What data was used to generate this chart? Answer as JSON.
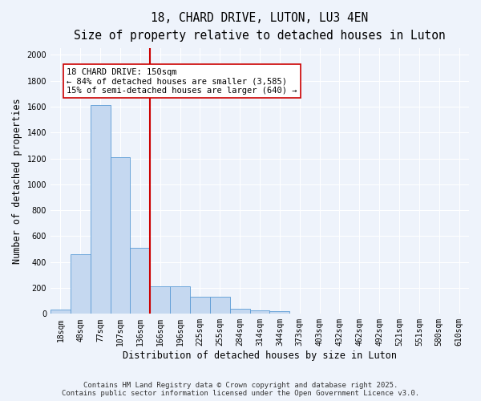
{
  "title_line1": "18, CHARD DRIVE, LUTON, LU3 4EN",
  "title_line2": "Size of property relative to detached houses in Luton",
  "xlabel": "Distribution of detached houses by size in Luton",
  "ylabel": "Number of detached properties",
  "categories": [
    "18sqm",
    "48sqm",
    "77sqm",
    "107sqm",
    "136sqm",
    "166sqm",
    "196sqm",
    "225sqm",
    "255sqm",
    "284sqm",
    "314sqm",
    "344sqm",
    "373sqm",
    "403sqm",
    "432sqm",
    "462sqm",
    "492sqm",
    "521sqm",
    "551sqm",
    "580sqm",
    "610sqm"
  ],
  "values": [
    30,
    460,
    1610,
    1210,
    510,
    215,
    215,
    130,
    130,
    40,
    25,
    20,
    0,
    0,
    0,
    0,
    0,
    0,
    0,
    0,
    0
  ],
  "bar_color": "#c5d8f0",
  "bar_edge_color": "#5b9bd5",
  "vline_x_idx": 4.5,
  "vline_color": "#cc0000",
  "annotation_text": "18 CHARD DRIVE: 150sqm\n← 84% of detached houses are smaller (3,585)\n15% of semi-detached houses are larger (640) →",
  "annotation_box_color": "#ffffff",
  "annotation_box_edge": "#cc0000",
  "ylim": [
    0,
    2050
  ],
  "yticks": [
    0,
    200,
    400,
    600,
    800,
    1000,
    1200,
    1400,
    1600,
    1800,
    2000
  ],
  "fig_bg_color": "#eef3fb",
  "plot_bg_color": "#eef3fb",
  "footer_line1": "Contains HM Land Registry data © Crown copyright and database right 2025.",
  "footer_line2": "Contains public sector information licensed under the Open Government Licence v3.0.",
  "title_fontsize": 10.5,
  "subtitle_fontsize": 9.5,
  "axis_label_fontsize": 8.5,
  "tick_fontsize": 7,
  "annotation_fontsize": 7.5,
  "footer_fontsize": 6.5
}
